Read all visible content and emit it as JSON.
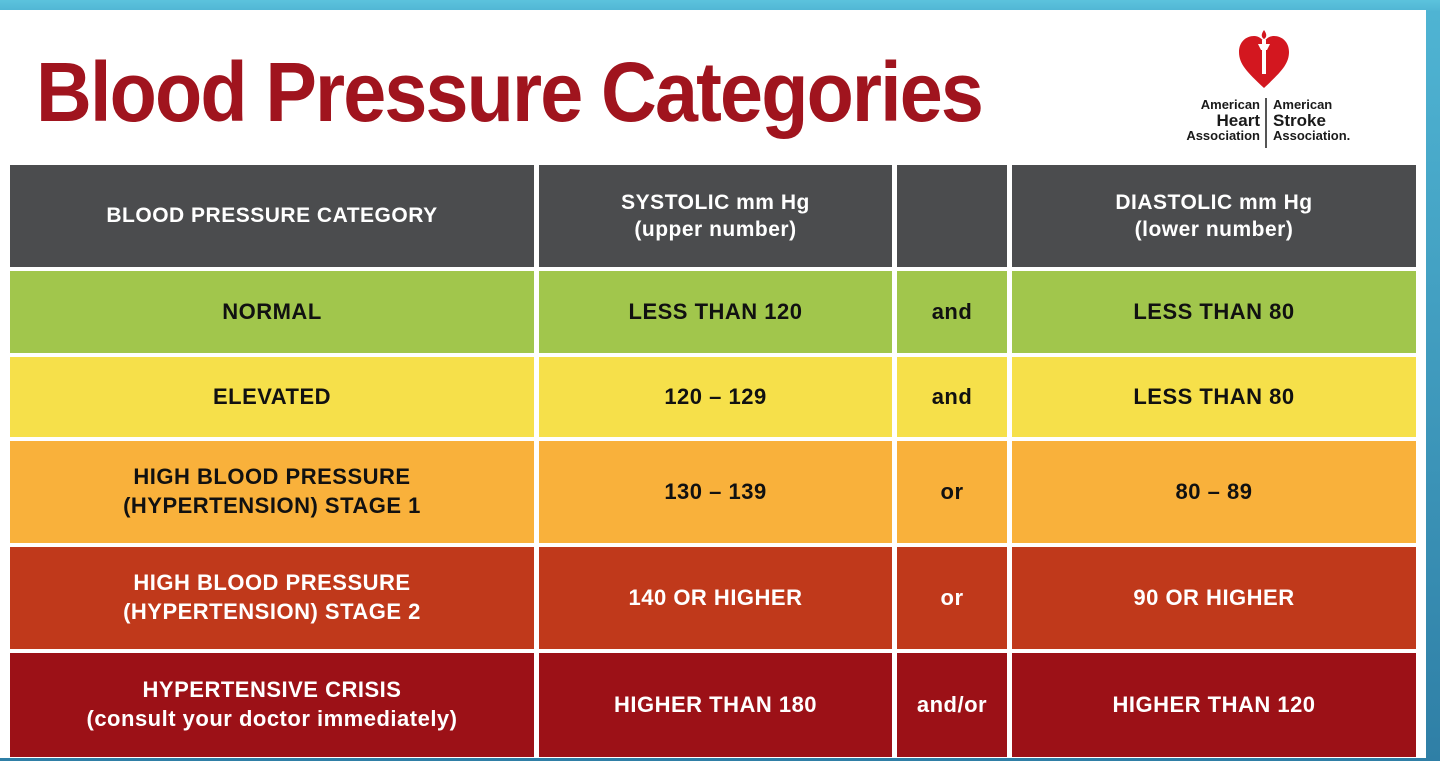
{
  "title": "Blood Pressure Categories",
  "logo": {
    "left_line1": "American",
    "left_line2": "Heart",
    "left_line3": "Association",
    "right_line1": "American",
    "right_line2": "Stroke",
    "right_line3": "Association."
  },
  "colors": {
    "title": "#a0141e",
    "header": "#4b4c4e",
    "normal": "#a1c64c",
    "elevated": "#f6e04a",
    "stage1": "#f9b13b",
    "stage2": "#c0391b",
    "crisis": "#9c1117"
  },
  "table": {
    "header": {
      "category": "BLOOD PRESSURE CATEGORY",
      "systolic_line1": "SYSTOLIC mm Hg",
      "systolic_line2": "(upper number)",
      "connector": "",
      "diastolic_line1": "DIASTOLIC mm Hg",
      "diastolic_line2": "(lower number)"
    },
    "rows": [
      {
        "category_line1": "NORMAL",
        "category_line2": "",
        "systolic": "LESS THAN 120",
        "connector": "and",
        "diastolic": "LESS THAN 80"
      },
      {
        "category_line1": "ELEVATED",
        "category_line2": "",
        "systolic": "120 – 129",
        "connector": "and",
        "diastolic": "LESS THAN 80"
      },
      {
        "category_line1": "HIGH BLOOD PRESSURE",
        "category_line2": "(HYPERTENSION) STAGE 1",
        "systolic": "130 – 139",
        "connector": "or",
        "diastolic": "80 – 89"
      },
      {
        "category_line1": "HIGH BLOOD PRESSURE",
        "category_line2": "(HYPERTENSION) STAGE 2",
        "systolic": "140 OR HIGHER",
        "connector": "or",
        "diastolic": "90 OR HIGHER"
      },
      {
        "category_line1": "HYPERTENSIVE CRISIS",
        "category_line2": "(consult your doctor immediately)",
        "systolic": "HIGHER THAN 180",
        "connector": "and/or",
        "diastolic": "HIGHER THAN 120"
      }
    ]
  }
}
